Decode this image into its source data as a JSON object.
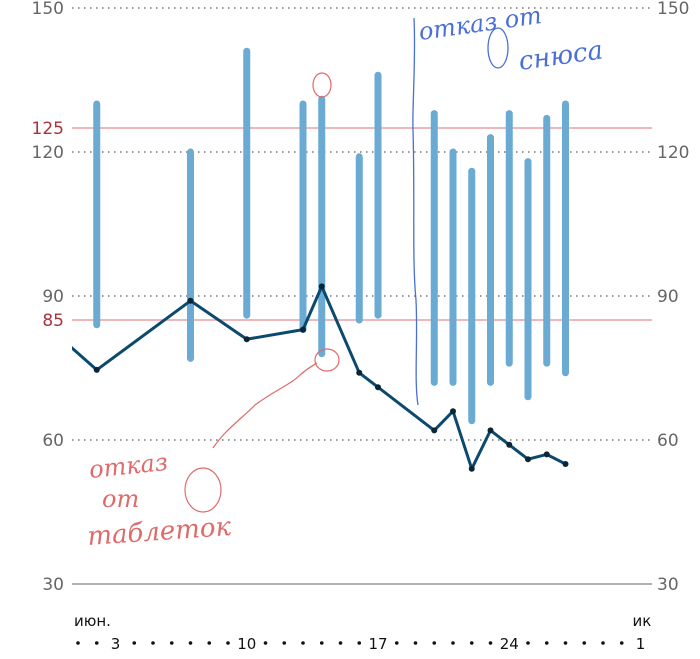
{
  "chart_data": {
    "type": "bar",
    "title": "",
    "xlabel": "",
    "ylabel": "",
    "ylim": [
      30,
      150
    ],
    "y_ticks": [
      "30",
      "60",
      "90",
      "120",
      "150"
    ],
    "reference_lines": [
      {
        "value": 125,
        "label": "125",
        "color": "#e8a0a4"
      },
      {
        "value": 85,
        "label": "85",
        "color": "#e8a0a4"
      }
    ],
    "x_range_days": [
      1,
      31
    ],
    "x_month_labels": [
      {
        "day": 1,
        "label": "июн."
      },
      {
        "day": 31,
        "label": "ик"
      }
    ],
    "x_tick_labels": [
      {
        "day": 3,
        "label": "3"
      },
      {
        "day": 10,
        "label": "10"
      },
      {
        "day": 17,
        "label": "17"
      },
      {
        "day": 24,
        "label": "24"
      },
      {
        "day": 31,
        "label": "1"
      }
    ],
    "grid": "dotted horizontal",
    "range_bars": {
      "color": "#6aaad3",
      "data": [
        {
          "day": 2,
          "low": 84,
          "high": 130
        },
        {
          "day": 7,
          "low": 77,
          "high": 120
        },
        {
          "day": 10,
          "low": 86,
          "high": 141
        },
        {
          "day": 13,
          "low": 83,
          "high": 130
        },
        {
          "day": 14,
          "low": 78,
          "high": 131
        },
        {
          "day": 16,
          "low": 85,
          "high": 119
        },
        {
          "day": 17,
          "low": 86,
          "high": 136
        },
        {
          "day": 20,
          "low": 72,
          "high": 128
        },
        {
          "day": 21,
          "low": 72,
          "high": 120
        },
        {
          "day": 22,
          "low": 64,
          "high": 116
        },
        {
          "day": 23,
          "low": 72,
          "high": 123
        },
        {
          "day": 24,
          "low": 76,
          "high": 128
        },
        {
          "day": 25,
          "low": 69,
          "high": 118
        },
        {
          "day": 26,
          "low": 76,
          "high": 127
        },
        {
          "day": 27,
          "low": 74,
          "high": 130
        }
      ]
    },
    "line": {
      "color": "#0b4a6e",
      "points": [
        {
          "day": -1,
          "value": 85
        },
        {
          "day": 2,
          "value": 74.6
        },
        {
          "day": 7,
          "value": 89
        },
        {
          "day": 10,
          "value": 81
        },
        {
          "day": 13,
          "value": 83
        },
        {
          "day": 14,
          "value": 92
        },
        {
          "day": 16,
          "value": 74
        },
        {
          "day": 17,
          "value": 71
        },
        {
          "day": 20,
          "value": 62
        },
        {
          "day": 21,
          "value": 66
        },
        {
          "day": 22,
          "value": 54
        },
        {
          "day": 23,
          "value": 62
        },
        {
          "day": 24,
          "value": 59
        },
        {
          "day": 25,
          "value": 56
        },
        {
          "day": 26,
          "value": 57
        },
        {
          "day": 27,
          "value": 55
        }
      ]
    }
  },
  "annotations": {
    "blue": {
      "color": "#4a6fd6",
      "line1": "отказ от",
      "line2": "снюса"
    },
    "red": {
      "color": "#e06a6a",
      "line1": "отказ",
      "line2": "от",
      "line3": "таблеток"
    }
  }
}
